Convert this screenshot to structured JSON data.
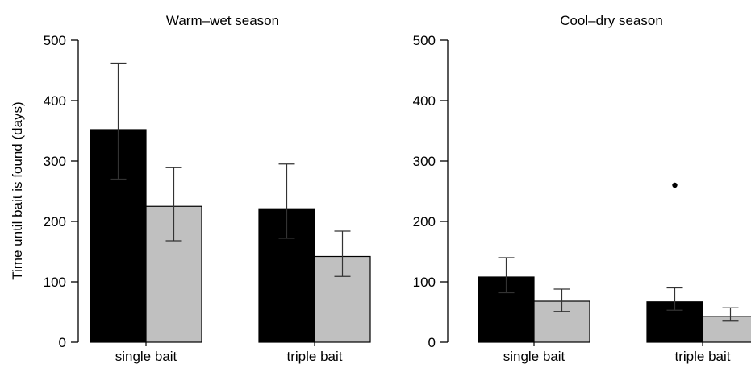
{
  "colors": {
    "series_a": "#000000",
    "series_b": "#c0c0c0",
    "axis": "#000000",
    "error_bar": "#333333"
  },
  "ylabel": "Time until bait is found (days)",
  "chart_data": [
    {
      "type": "bar",
      "title": "Warm–wet season",
      "ylabel": "Time until bait is found (days)",
      "ylim": [
        0,
        500
      ],
      "yticks": [
        0,
        100,
        200,
        300,
        400,
        500
      ],
      "categories": [
        "single bait",
        "triple bait"
      ],
      "series": [
        {
          "values": [
            352,
            221
          ],
          "err_low": [
            270,
            172
          ],
          "err_high": [
            462,
            295
          ],
          "color": "#000000"
        },
        {
          "values": [
            225,
            142
          ],
          "err_low": [
            168,
            109
          ],
          "err_high": [
            289,
            184
          ],
          "color": "#c0c0c0"
        }
      ],
      "outliers": [],
      "grid": false,
      "legend": "none"
    },
    {
      "type": "bar",
      "title": "Cool–dry season",
      "ylim": [
        0,
        500
      ],
      "yticks": [
        0,
        100,
        200,
        300,
        400,
        500
      ],
      "categories": [
        "single bait",
        "triple bait"
      ],
      "series": [
        {
          "values": [
            108,
            67
          ],
          "err_low": [
            82,
            53
          ],
          "err_high": [
            140,
            90
          ],
          "color": "#000000"
        },
        {
          "values": [
            68,
            43
          ],
          "err_low": [
            51,
            35
          ],
          "err_high": [
            88,
            57
          ],
          "color": "#c0c0c0"
        }
      ],
      "outliers": [
        {
          "category": "triple bait",
          "series": 0,
          "value": 260
        }
      ],
      "grid": false,
      "legend": "none"
    }
  ]
}
